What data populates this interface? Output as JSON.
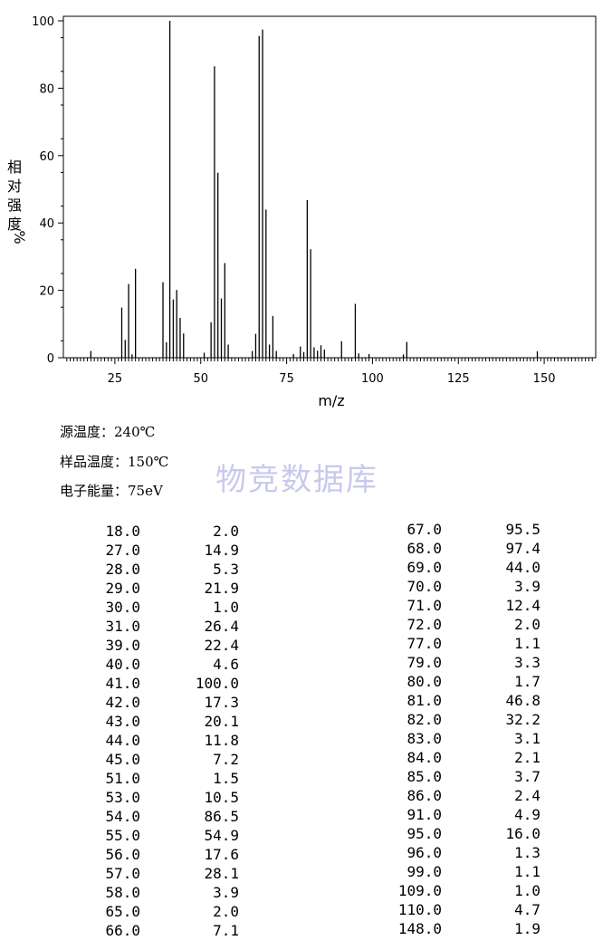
{
  "chart_data": {
    "type": "bar",
    "xlabel": "m/z",
    "ylabel": "相对强度%",
    "xlim": [
      10,
      165
    ],
    "ylim": [
      0,
      100
    ],
    "x_ticks": [
      25,
      50,
      75,
      100,
      125,
      150
    ],
    "y_ticks": [
      0,
      20,
      40,
      60,
      80,
      100
    ],
    "x": [
      18,
      27,
      28,
      29,
      30,
      31,
      39,
      40,
      41,
      42,
      43,
      44,
      45,
      51,
      53,
      54,
      55,
      56,
      57,
      58,
      65,
      66,
      67,
      68,
      69,
      70,
      71,
      72,
      77,
      79,
      80,
      81,
      82,
      83,
      84,
      85,
      86,
      91,
      95,
      96,
      99,
      109,
      110,
      148
    ],
    "values": [
      2.0,
      14.9,
      5.3,
      21.9,
      1.0,
      26.4,
      22.4,
      4.6,
      100.0,
      17.3,
      20.1,
      11.8,
      7.2,
      1.5,
      10.5,
      86.5,
      54.9,
      17.6,
      28.1,
      3.9,
      2.0,
      7.1,
      95.5,
      97.4,
      44.0,
      3.9,
      12.4,
      2.0,
      1.1,
      3.3,
      1.7,
      46.8,
      32.2,
      3.1,
      2.1,
      3.7,
      2.4,
      4.9,
      16.0,
      1.3,
      1.1,
      1.0,
      4.7,
      1.9
    ],
    "grid": false,
    "legend": "none"
  },
  "conditions": {
    "source_temp": "源温度：240℃",
    "sample_temp": "样品温度：150℃",
    "electron_energy": "电子能量：75eV"
  },
  "watermark": "物竞数据库",
  "table": {
    "left": [
      [
        "18.0",
        "2.0"
      ],
      [
        "27.0",
        "14.9"
      ],
      [
        "28.0",
        "5.3"
      ],
      [
        "29.0",
        "21.9"
      ],
      [
        "30.0",
        "1.0"
      ],
      [
        "31.0",
        "26.4"
      ],
      [
        "39.0",
        "22.4"
      ],
      [
        "40.0",
        "4.6"
      ],
      [
        "41.0",
        "100.0"
      ],
      [
        "42.0",
        "17.3"
      ],
      [
        "43.0",
        "20.1"
      ],
      [
        "44.0",
        "11.8"
      ],
      [
        "45.0",
        "7.2"
      ],
      [
        "51.0",
        "1.5"
      ],
      [
        "53.0",
        "10.5"
      ],
      [
        "54.0",
        "86.5"
      ],
      [
        "55.0",
        "54.9"
      ],
      [
        "56.0",
        "17.6"
      ],
      [
        "57.0",
        "28.1"
      ],
      [
        "58.0",
        "3.9"
      ],
      [
        "65.0",
        "2.0"
      ],
      [
        "66.0",
        "7.1"
      ]
    ],
    "right": [
      [
        "67.0",
        "95.5"
      ],
      [
        "68.0",
        "97.4"
      ],
      [
        "69.0",
        "44.0"
      ],
      [
        "70.0",
        "3.9"
      ],
      [
        "71.0",
        "12.4"
      ],
      [
        "72.0",
        "2.0"
      ],
      [
        "77.0",
        "1.1"
      ],
      [
        "79.0",
        "3.3"
      ],
      [
        "80.0",
        "1.7"
      ],
      [
        "81.0",
        "46.8"
      ],
      [
        "82.0",
        "32.2"
      ],
      [
        "83.0",
        "3.1"
      ],
      [
        "84.0",
        "2.1"
      ],
      [
        "85.0",
        "3.7"
      ],
      [
        "86.0",
        "2.4"
      ],
      [
        "91.0",
        "4.9"
      ],
      [
        "95.0",
        "16.0"
      ],
      [
        "96.0",
        "1.3"
      ],
      [
        "99.0",
        "1.1"
      ],
      [
        "109.0",
        "1.0"
      ],
      [
        "110.0",
        "4.7"
      ],
      [
        "148.0",
        "1.9"
      ]
    ]
  }
}
